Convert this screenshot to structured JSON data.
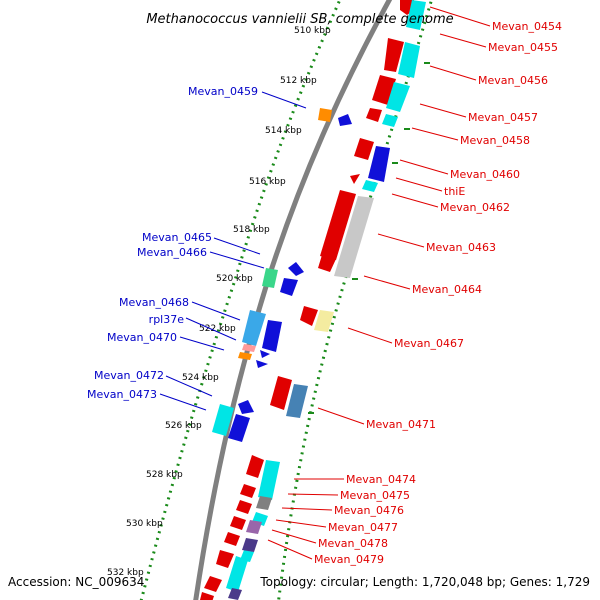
{
  "title": "Methanococcus vannielii SB, complete genome",
  "accession": "Accession: NC_009634",
  "topology": "Topology: circular; Length: 1,720,048 bp; Genes: 1,729",
  "colors": {
    "forward_label": "#e00000",
    "reverse_label": "#0000c8",
    "backbone": "#808080",
    "tick_mark": "#1a8a1a"
  },
  "ticks": [
    "510 kbp",
    "512 kbp",
    "514 kbp",
    "516 kbp",
    "518 kbp",
    "520 kbp",
    "522 kbp",
    "524 kbp",
    "526 kbp",
    "528 kbp",
    "530 kbp",
    "532 kbp"
  ],
  "forward_labels": [
    "Mevan_0454",
    "Mevan_0455",
    "Mevan_0456",
    "Mevan_0457",
    "Mevan_0458",
    "Mevan_0460",
    "thiE",
    "Mevan_0462",
    "Mevan_0463",
    "Mevan_0464",
    "Mevan_0467",
    "Mevan_0471",
    "Mevan_0474",
    "Mevan_0475",
    "Mevan_0476",
    "Mevan_0477",
    "Mevan_0478",
    "Mevan_0479"
  ],
  "reverse_labels": [
    "Mevan_0459",
    "Mevan_0465",
    "Mevan_0466",
    "Mevan_0468",
    "rpl37e",
    "Mevan_0470",
    "Mevan_0472",
    "Mevan_0473"
  ]
}
